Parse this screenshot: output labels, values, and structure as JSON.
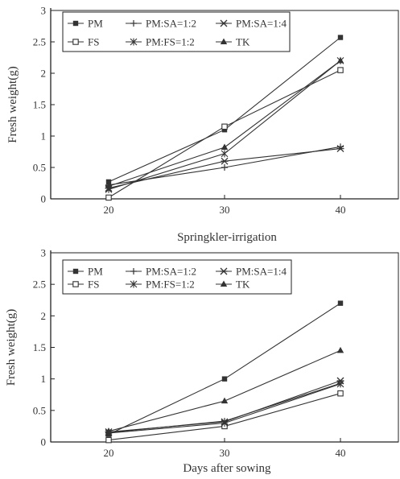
{
  "chart_data": [
    {
      "type": "line",
      "title": "",
      "caption": "Springkler-irrigation",
      "xlabel": "",
      "ylabel": "Fresh weight(g)",
      "x": [
        20,
        30,
        40
      ],
      "x_ticks": [
        "20",
        "30",
        "40"
      ],
      "ylim": [
        0,
        3
      ],
      "y_ticks": [
        "0",
        "0.5",
        "1",
        "1.5",
        "2",
        "2.5",
        "3"
      ],
      "grid": false,
      "legend_position": "top-left",
      "series": [
        {
          "name": "PM",
          "marker": "square-filled",
          "values": [
            0.27,
            1.1,
            2.57
          ]
        },
        {
          "name": "FS",
          "marker": "square-open",
          "values": [
            0.02,
            1.15,
            2.05
          ]
        },
        {
          "name": "PM:SA=1:2",
          "marker": "plus",
          "values": [
            0.22,
            0.5,
            0.83
          ]
        },
        {
          "name": "PM:FS=1:2",
          "marker": "asterisk",
          "values": [
            0.15,
            0.72,
            2.2
          ]
        },
        {
          "name": "PM:SA=1:4",
          "marker": "star",
          "values": [
            0.17,
            0.6,
            0.8
          ]
        },
        {
          "name": "TK",
          "marker": "triangle-filled",
          "values": [
            0.2,
            0.82,
            2.2
          ]
        }
      ]
    },
    {
      "type": "line",
      "title": "",
      "xlabel": "Days after sowing",
      "ylabel": "Fresh weight(g)",
      "x": [
        20,
        30,
        40
      ],
      "x_ticks": [
        "20",
        "30",
        "40"
      ],
      "ylim": [
        0,
        3
      ],
      "y_ticks": [
        "0",
        "0.5",
        "1",
        "1.5",
        "2",
        "2.5",
        "3"
      ],
      "grid": false,
      "legend_position": "top-left",
      "series": [
        {
          "name": "PM",
          "marker": "square-filled",
          "values": [
            0.12,
            1.0,
            2.2
          ]
        },
        {
          "name": "FS",
          "marker": "square-open",
          "values": [
            0.03,
            0.25,
            0.77
          ]
        },
        {
          "name": "PM:SA=1:2",
          "marker": "plus",
          "values": [
            0.15,
            0.33,
            0.93
          ]
        },
        {
          "name": "PM:FS=1:2",
          "marker": "asterisk",
          "values": [
            0.14,
            0.3,
            0.92
          ]
        },
        {
          "name": "PM:SA=1:4",
          "marker": "star",
          "values": [
            0.16,
            0.32,
            0.97
          ]
        },
        {
          "name": "TK",
          "marker": "triangle-filled",
          "values": [
            0.17,
            0.65,
            1.45
          ]
        }
      ]
    }
  ]
}
